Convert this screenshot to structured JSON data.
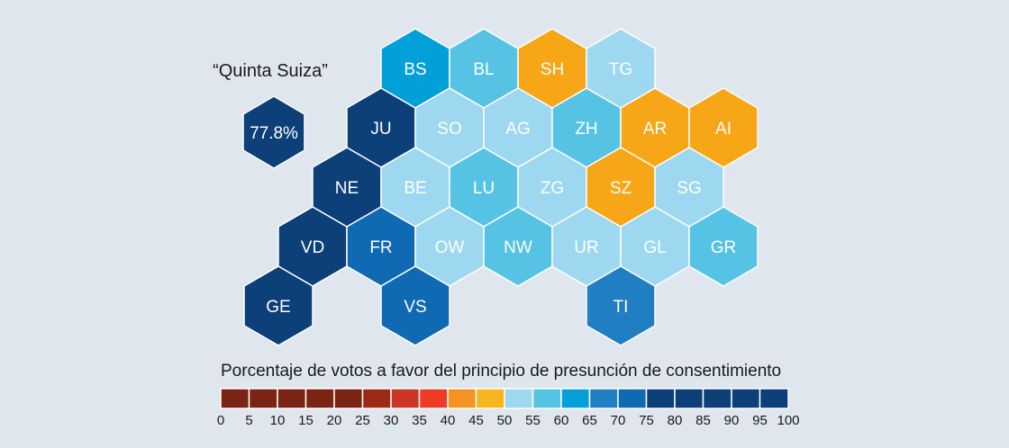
{
  "diaspora": {
    "title": "“Quinta Suiza”",
    "value": "77.8%",
    "color": "#0d3f78"
  },
  "cantons": [
    {
      "code": "BS",
      "color": "#039fd9"
    },
    {
      "code": "BL",
      "color": "#57c3e4"
    },
    {
      "code": "SH",
      "color": "#f7a617"
    },
    {
      "code": "TG",
      "color": "#9dd8f0"
    },
    {
      "code": "JU",
      "color": "#0d3f78"
    },
    {
      "code": "SO",
      "color": "#9dd8f0"
    },
    {
      "code": "AG",
      "color": "#9dd8f0"
    },
    {
      "code": "ZH",
      "color": "#57c3e4"
    },
    {
      "code": "AR",
      "color": "#f7a617"
    },
    {
      "code": "AI",
      "color": "#f7a617"
    },
    {
      "code": "NE",
      "color": "#0d3f78"
    },
    {
      "code": "BE",
      "color": "#9dd8f0"
    },
    {
      "code": "LU",
      "color": "#57c3e4"
    },
    {
      "code": "ZG",
      "color": "#9dd8f0"
    },
    {
      "code": "SZ",
      "color": "#f7a617"
    },
    {
      "code": "SG",
      "color": "#9dd8f0"
    },
    {
      "code": "VD",
      "color": "#0d3f78"
    },
    {
      "code": "FR",
      "color": "#0f6ab3"
    },
    {
      "code": "OW",
      "color": "#9dd8f0"
    },
    {
      "code": "NW",
      "color": "#57c3e4"
    },
    {
      "code": "UR",
      "color": "#9dd8f0"
    },
    {
      "code": "GL",
      "color": "#9dd8f0"
    },
    {
      "code": "GR",
      "color": "#57c3e4"
    },
    {
      "code": "GE",
      "color": "#0d3f78"
    },
    {
      "code": "VS",
      "color": "#0f6ab3"
    },
    {
      "code": "TI",
      "color": "#1f7fc2"
    }
  ],
  "legend": {
    "title": "Porcentaje de votos a favor del principio de presunción de consentimiento",
    "colors": [
      "#7a2413",
      "#7a2413",
      "#7a2413",
      "#7a2413",
      "#7a2413",
      "#9c2a17",
      "#cc3527",
      "#ef3a26",
      "#f39422",
      "#f9b51e",
      "#9dd8f0",
      "#57c3e4",
      "#039fd9",
      "#1f7fc2",
      "#0f6ab3",
      "#0d3f78",
      "#0d3f78",
      "#0d3f78",
      "#0d3f78",
      "#0d3f78"
    ],
    "ticks": [
      "0",
      "5",
      "10",
      "15",
      "20",
      "25",
      "30",
      "35",
      "40",
      "45",
      "50",
      "55",
      "60",
      "65",
      "70",
      "75",
      "80",
      "85",
      "90",
      "95",
      "100"
    ]
  }
}
